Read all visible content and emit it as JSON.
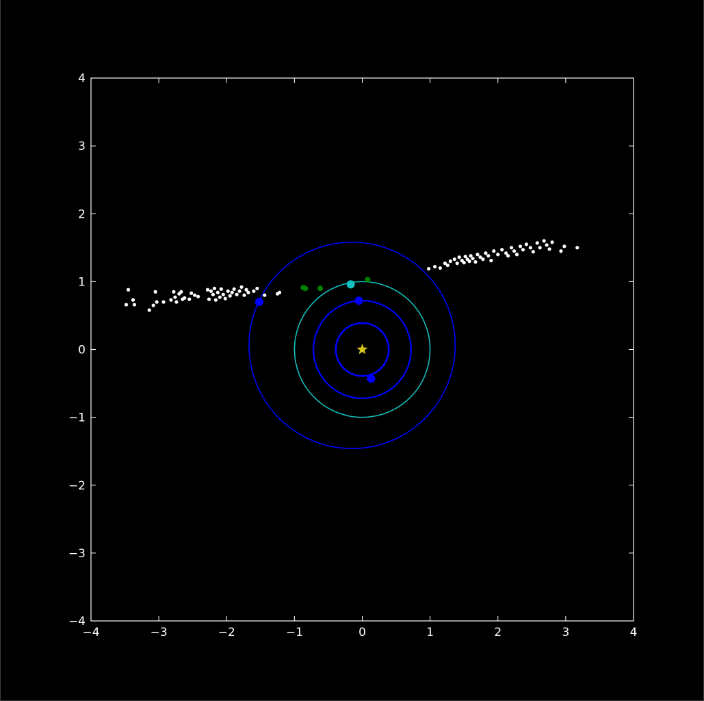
{
  "chart_data": {
    "type": "scatter",
    "title": "",
    "xlabel": "",
    "ylabel": "",
    "xlim": [
      -4,
      4
    ],
    "ylim": [
      -4,
      4
    ],
    "grid": false,
    "x_ticks": [
      -4,
      -3,
      -2,
      -1,
      0,
      1,
      2,
      3,
      4
    ],
    "y_ticks": [
      -4,
      -3,
      -2,
      -1,
      0,
      1,
      2,
      3,
      4
    ],
    "x_tick_labels": [
      "−4",
      "−3",
      "−2",
      "−1",
      "0",
      "1",
      "2",
      "3",
      "4"
    ],
    "y_tick_labels": [
      "−4",
      "−3",
      "−2",
      "−1",
      "0",
      "1",
      "2",
      "3",
      "4"
    ],
    "colors": {
      "background": "#000000",
      "axes": "#ffffff",
      "star": "#d4c21a",
      "blue": "#0000ff",
      "cyan": "#14bfbf",
      "green": "#008000",
      "debris": "#ffffff"
    },
    "star": {
      "x": 0,
      "y": 0,
      "marker": "star-icon"
    },
    "orbits": [
      {
        "cx": 0.0,
        "cy": 0.0,
        "r": 0.39,
        "color": "blue"
      },
      {
        "cx": 0.0,
        "cy": 0.0,
        "r": 0.72,
        "color": "blue"
      },
      {
        "cx": 0.0,
        "cy": 0.0,
        "r": 1.0,
        "color": "cyan"
      },
      {
        "cx": -0.15,
        "cy": 0.06,
        "r": 1.52,
        "color": "blue"
      }
    ],
    "planets": [
      {
        "x": 0.13,
        "y": -0.43,
        "color": "blue"
      },
      {
        "x": -0.05,
        "y": 0.72,
        "color": "blue"
      },
      {
        "x": -0.17,
        "y": 0.96,
        "color": "cyan"
      },
      {
        "x": -1.52,
        "y": 0.7,
        "color": "blue"
      }
    ],
    "green_points": [
      {
        "x": -0.87,
        "y": 0.91
      },
      {
        "x": -0.84,
        "y": 0.9
      },
      {
        "x": -0.62,
        "y": 0.9
      },
      {
        "x": 0.08,
        "y": 1.03
      }
    ],
    "debris_left": [
      [
        -3.45,
        0.88
      ],
      [
        -3.48,
        0.66
      ],
      [
        -3.38,
        0.73
      ],
      [
        -3.36,
        0.66
      ],
      [
        -3.14,
        0.58
      ],
      [
        -3.08,
        0.65
      ],
      [
        -3.05,
        0.85
      ],
      [
        -3.03,
        0.7
      ],
      [
        -2.93,
        0.7
      ],
      [
        -2.82,
        0.73
      ],
      [
        -2.78,
        0.85
      ],
      [
        -2.76,
        0.77
      ],
      [
        -2.74,
        0.7
      ],
      [
        -2.7,
        0.82
      ],
      [
        -2.67,
        0.85
      ],
      [
        -2.65,
        0.74
      ],
      [
        -2.62,
        0.76
      ],
      [
        -2.55,
        0.74
      ],
      [
        -2.52,
        0.83
      ],
      [
        -2.47,
        0.8
      ],
      [
        -2.42,
        0.78
      ],
      [
        -2.28,
        0.88
      ],
      [
        -2.26,
        0.74
      ],
      [
        -2.23,
        0.86
      ],
      [
        -2.2,
        0.81
      ],
      [
        -2.18,
        0.9
      ],
      [
        -2.16,
        0.73
      ],
      [
        -2.13,
        0.84
      ],
      [
        -2.1,
        0.77
      ],
      [
        -2.08,
        0.89
      ],
      [
        -2.05,
        0.81
      ],
      [
        -2.02,
        0.75
      ],
      [
        -1.98,
        0.86
      ],
      [
        -1.95,
        0.79
      ],
      [
        -1.92,
        0.84
      ],
      [
        -1.89,
        0.89
      ],
      [
        -1.85,
        0.81
      ],
      [
        -1.81,
        0.86
      ],
      [
        -1.78,
        0.92
      ],
      [
        -1.74,
        0.8
      ],
      [
        -1.71,
        0.88
      ],
      [
        -1.68,
        0.84
      ],
      [
        -1.6,
        0.86
      ],
      [
        -1.55,
        0.9
      ],
      [
        -1.44,
        0.8
      ],
      [
        -1.25,
        0.82
      ],
      [
        -1.22,
        0.84
      ]
    ],
    "debris_right": [
      [
        0.98,
        1.19
      ],
      [
        1.07,
        1.22
      ],
      [
        1.15,
        1.2
      ],
      [
        1.22,
        1.27
      ],
      [
        1.26,
        1.24
      ],
      [
        1.3,
        1.3
      ],
      [
        1.36,
        1.33
      ],
      [
        1.4,
        1.27
      ],
      [
        1.43,
        1.36
      ],
      [
        1.47,
        1.31
      ],
      [
        1.5,
        1.28
      ],
      [
        1.52,
        1.37
      ],
      [
        1.55,
        1.33
      ],
      [
        1.58,
        1.3
      ],
      [
        1.6,
        1.38
      ],
      [
        1.63,
        1.34
      ],
      [
        1.67,
        1.29
      ],
      [
        1.7,
        1.4
      ],
      [
        1.74,
        1.36
      ],
      [
        1.78,
        1.33
      ],
      [
        1.82,
        1.42
      ],
      [
        1.86,
        1.38
      ],
      [
        1.9,
        1.31
      ],
      [
        1.94,
        1.45
      ],
      [
        2.0,
        1.4
      ],
      [
        2.06,
        1.47
      ],
      [
        2.12,
        1.42
      ],
      [
        2.15,
        1.38
      ],
      [
        2.2,
        1.5
      ],
      [
        2.24,
        1.45
      ],
      [
        2.28,
        1.4
      ],
      [
        2.33,
        1.52
      ],
      [
        2.37,
        1.47
      ],
      [
        2.42,
        1.55
      ],
      [
        2.48,
        1.5
      ],
      [
        2.52,
        1.44
      ],
      [
        2.58,
        1.57
      ],
      [
        2.62,
        1.5
      ],
      [
        2.68,
        1.6
      ],
      [
        2.72,
        1.54
      ],
      [
        2.76,
        1.48
      ],
      [
        2.8,
        1.58
      ],
      [
        2.93,
        1.45
      ],
      [
        2.98,
        1.52
      ],
      [
        3.17,
        1.5
      ]
    ]
  }
}
